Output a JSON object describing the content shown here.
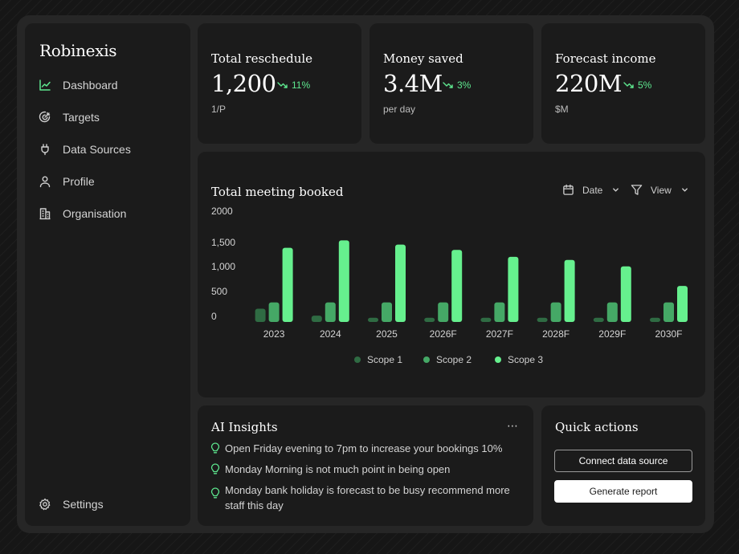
{
  "app": {
    "brand": "Robinexis"
  },
  "sidebar": {
    "items": [
      {
        "label": "Dashboard",
        "icon": "chart-line-icon",
        "active": true
      },
      {
        "label": "Targets",
        "icon": "target-icon"
      },
      {
        "label": "Data Sources",
        "icon": "plug-icon"
      },
      {
        "label": "Profile",
        "icon": "user-icon"
      },
      {
        "label": "Organisation",
        "icon": "building-icon"
      }
    ],
    "settings_label": "Settings"
  },
  "stats": [
    {
      "title": "Total reschedule",
      "value": "1,200",
      "trend": "11%",
      "unit": "1/P"
    },
    {
      "title": "Money saved",
      "value": "3.4M",
      "trend": "3%",
      "unit": "per day"
    },
    {
      "title": "Forecast income",
      "value": "220M",
      "trend": "5%",
      "unit": "$M"
    }
  ],
  "chart_controls": {
    "date_label": "Date",
    "view_label": "View"
  },
  "colors": {
    "accent": "#5ee88f",
    "scope1": "#2f6b43",
    "scope2": "#45a866",
    "scope3": "#66f08e"
  },
  "chart_data": {
    "type": "bar",
    "title": "Total meeting booked",
    "categories": [
      "2023",
      "2024",
      "2025",
      "2026F",
      "2027F",
      "2028F",
      "2029F",
      "2030F"
    ],
    "series": [
      {
        "name": "Scope 1",
        "values": [
          250,
          120,
          80,
          80,
          80,
          80,
          80,
          80
        ]
      },
      {
        "name": "Scope 2",
        "values": [
          370,
          370,
          370,
          370,
          370,
          370,
          370,
          370
        ]
      },
      {
        "name": "Scope 3",
        "values": [
          1400,
          1540,
          1460,
          1360,
          1230,
          1170,
          1050,
          680
        ]
      }
    ],
    "y_ticks": [
      "0",
      "500",
      "1,000",
      "1,500",
      "2000"
    ],
    "ylim": [
      0,
      2000
    ],
    "legend_position": "bottom-center",
    "grid": false
  },
  "insights": {
    "title": "AI Insights",
    "items": [
      "Open Friday evening to 7pm to increase your bookings 10%",
      "Monday Morning is not much point in being open",
      "Monday bank holiday is forecast to be busy recommend more staff this day"
    ]
  },
  "quick_actions": {
    "title": "Quick actions",
    "connect_label": "Connect data source",
    "report_label": "Generate report"
  }
}
